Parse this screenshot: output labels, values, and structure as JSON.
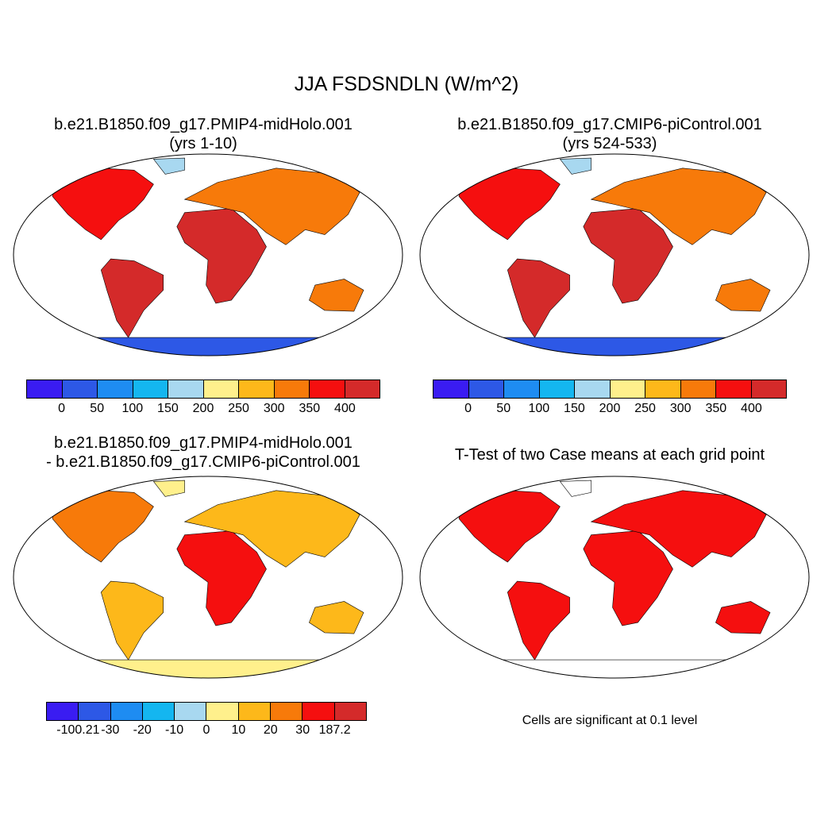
{
  "figure": {
    "title": "JJA FSDSNDLN (W/m^2)"
  },
  "panels": [
    {
      "title_line1": "b.e21.B1850.f09_g17.PMIP4-midHolo.001",
      "title_line2": "(yrs 1-10)",
      "field": "absolute",
      "colorbar": {
        "colors": [
          "#3a1cf2",
          "#2d58e6",
          "#1e8cf2",
          "#14b6f0",
          "#a8d8f0",
          "#fff08c",
          "#fdb81a",
          "#f77a0a",
          "#f50f0f",
          "#d42a2a"
        ],
        "ticks": [
          "0",
          "50",
          "100",
          "150",
          "200",
          "250",
          "300",
          "350",
          "400"
        ]
      }
    },
    {
      "title_line1": "b.e21.B1850.f09_g17.CMIP6-piControl.001",
      "title_line2": "(yrs 524-533)",
      "field": "absolute",
      "colorbar": {
        "colors": [
          "#3a1cf2",
          "#2d58e6",
          "#1e8cf2",
          "#14b6f0",
          "#a8d8f0",
          "#fff08c",
          "#fdb81a",
          "#f77a0a",
          "#f50f0f",
          "#d42a2a"
        ],
        "ticks": [
          "0",
          "50",
          "100",
          "150",
          "200",
          "250",
          "300",
          "350",
          "400"
        ]
      }
    },
    {
      "title_line1": "b.e21.B1850.f09_g17.PMIP4-midHolo.001",
      "title_line2": "- b.e21.B1850.f09_g17.CMIP6-piControl.001",
      "field": "difference",
      "colorbar": {
        "colors": [
          "#3a1cf2",
          "#2d58e6",
          "#1e8cf2",
          "#14b6f0",
          "#a8d8f0",
          "#fff08c",
          "#fdb81a",
          "#f77a0a",
          "#f50f0f",
          "#d42a2a"
        ],
        "ticks": [
          "-100.21",
          "-30",
          "-20",
          "-10",
          "0",
          "10",
          "20",
          "30",
          "187.2"
        ]
      }
    },
    {
      "title_line1": "T-Test of two Case means at each grid point",
      "title_line2": "",
      "field": "significance",
      "significance_color": "#f50f0f",
      "note": "Cells are significant at 0.1 level"
    }
  ]
}
